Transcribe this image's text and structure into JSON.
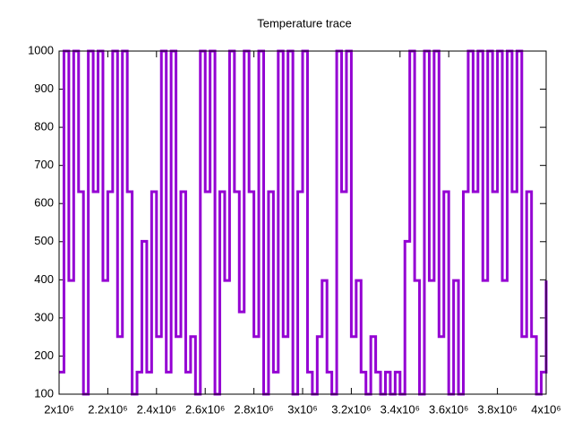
{
  "chart_data": {
    "type": "line",
    "title": "Temperature trace",
    "steps": true,
    "x": [
      2000000,
      2020000,
      2040000,
      2060000,
      2080000,
      2100000,
      2120000,
      2140000,
      2160000,
      2180000,
      2200000,
      2220000,
      2240000,
      2260000,
      2280000,
      2300000,
      2320000,
      2340000,
      2360000,
      2380000,
      2400000,
      2420000,
      2440000,
      2460000,
      2480000,
      2500000,
      2520000,
      2540000,
      2560000,
      2580000,
      2600000,
      2620000,
      2640000,
      2660000,
      2680000,
      2700000,
      2720000,
      2740000,
      2760000,
      2780000,
      2800000,
      2820000,
      2840000,
      2860000,
      2880000,
      2900000,
      2920000,
      2940000,
      2960000,
      2980000,
      3000000,
      3020000,
      3040000,
      3060000,
      3080000,
      3100000,
      3120000,
      3140000,
      3160000,
      3180000,
      3200000,
      3220000,
      3240000,
      3260000,
      3280000,
      3300000,
      3320000,
      3340000,
      3360000,
      3380000,
      3400000,
      3420000,
      3440000,
      3460000,
      3480000,
      3500000,
      3520000,
      3540000,
      3560000,
      3580000,
      3600000,
      3620000,
      3640000,
      3660000,
      3680000,
      3700000,
      3720000,
      3740000,
      3760000,
      3780000,
      3800000,
      3820000,
      3840000,
      3860000,
      3880000,
      3900000,
      3920000,
      3940000,
      3960000,
      3980000,
      4000000
    ],
    "series": [
      {
        "color": "#9400d3",
        "values": [
          158,
          1000,
          398,
          1000,
          631,
          100,
          1000,
          631,
          1000,
          398,
          631,
          1000,
          251,
          1000,
          631,
          100,
          158,
          501,
          158,
          631,
          251,
          1000,
          158,
          1000,
          251,
          631,
          158,
          251,
          100,
          1000,
          631,
          1000,
          100,
          631,
          398,
          1000,
          631,
          316,
          1000,
          631,
          251,
          1000,
          100,
          631,
          158,
          1000,
          251,
          1000,
          100,
          631,
          1000,
          158,
          100,
          251,
          398,
          158,
          100,
          1000,
          631,
          1000,
          251,
          398,
          158,
          100,
          251,
          158,
          100,
          158,
          100,
          158,
          100,
          501,
          1000,
          398,
          100,
          1000,
          398,
          1000,
          251,
          631,
          100,
          398,
          100,
          631,
          1000,
          631,
          1000,
          398,
          1000,
          631,
          1000,
          398,
          1000,
          631,
          1000,
          251,
          631,
          251,
          100,
          158,
          398
        ]
      }
    ],
    "xlim": [
      2000000,
      4000000
    ],
    "xticks": [
      {
        "value": 2000000,
        "label": "2x10⁶"
      },
      {
        "value": 2200000,
        "label": "2.2x10⁶"
      },
      {
        "value": 2400000,
        "label": "2.4x10⁶"
      },
      {
        "value": 2600000,
        "label": "2.6x10⁶"
      },
      {
        "value": 2800000,
        "label": "2.8x10⁶"
      },
      {
        "value": 3000000,
        "label": "3x10⁶"
      },
      {
        "value": 3200000,
        "label": "3.2x10⁶"
      },
      {
        "value": 3400000,
        "label": "3.4x10⁶"
      },
      {
        "value": 3600000,
        "label": "3.6x10⁶"
      },
      {
        "value": 3800000,
        "label": "3.8x10⁶"
      },
      {
        "value": 4000000,
        "label": "4x10⁶"
      }
    ],
    "ylim": [
      100,
      1000
    ],
    "yticks": [
      100,
      200,
      300,
      400,
      500,
      600,
      700,
      800,
      900,
      1000
    ]
  }
}
